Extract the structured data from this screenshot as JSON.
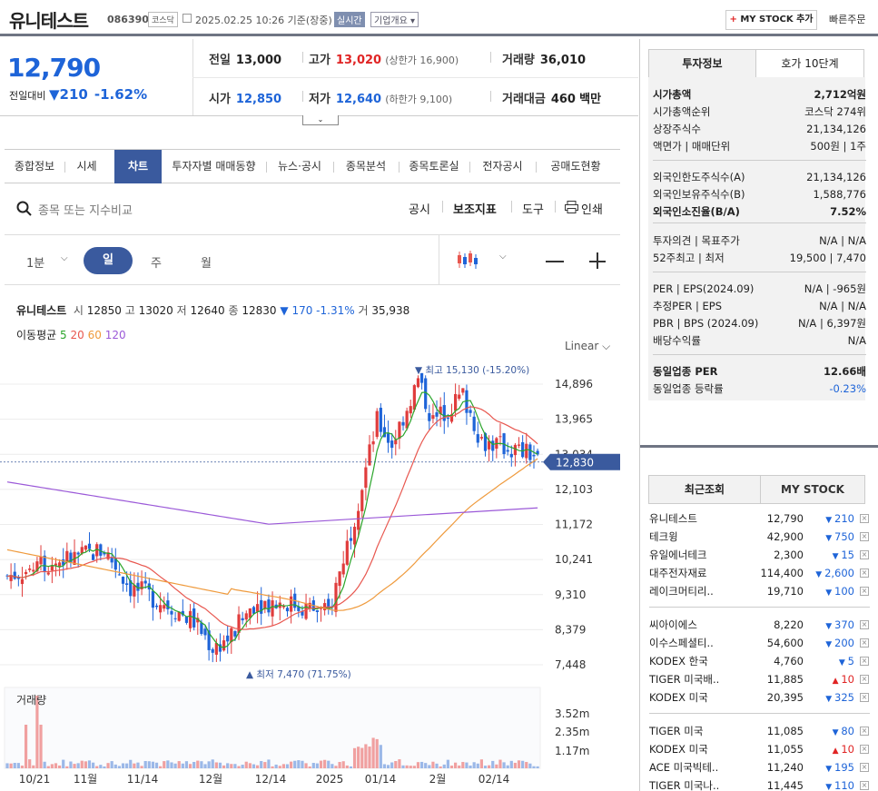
{
  "header": {
    "name": "유니테스트",
    "code": "086390",
    "market": "코스닥",
    "datetime": "2025.02.25 10:26  기준(장중)",
    "realtime": "실시간",
    "overview": "기업개요",
    "mystock_btn": "MY STOCK 추가",
    "fast_order": "빠른주문"
  },
  "price": {
    "current": "12,790",
    "change_label": "전일대비",
    "change": "210",
    "change_pct": "-1.62%",
    "prev_label": "전일",
    "prev": "13,000",
    "high_label": "고가",
    "high": "13,020",
    "upper_limit": "(상한가 16,900)",
    "volume_label": "거래량",
    "volume": "36,010",
    "open_label": "시가",
    "open": "12,850",
    "low_label": "저가",
    "low": "12,640",
    "lower_limit": "(하한가 9,100)",
    "amount_label": "거래대금",
    "amount": "460",
    "amount_unit": "백만"
  },
  "tabs": [
    "종합정보",
    "시세",
    "차트",
    "투자자별 매매동향",
    "뉴스·공시",
    "종목분석",
    "종목토론실",
    "전자공시",
    "공매도현황"
  ],
  "toolbar": {
    "search_placeholder": "종목 또는 지수비교",
    "disclosure": "공시",
    "indicator": "보조지표",
    "tools": "도구",
    "print": "인쇄"
  },
  "periods": [
    "1분",
    "일",
    "주",
    "월"
  ],
  "chart_info": {
    "name": "유니테스트",
    "open_l": "시",
    "open": "12850",
    "high_l": "고",
    "high": "13020",
    "low_l": "저",
    "low": "12640",
    "close_l": "종",
    "close": "12830",
    "change": "▼ 170 -1.31%",
    "vol_l": "거",
    "vol": "35,938",
    "ma_label": "이동평균",
    "ma": [
      "5",
      "20",
      "60",
      "120"
    ],
    "ma_colors": [
      "#2aa52a",
      "#e8574f",
      "#ef9a3c",
      "#9b59d8"
    ],
    "scale": "Linear",
    "high_note": "▼ 최고 15,130 (-15.20%)",
    "low_note": "▲ 최저 7,470 (71.75%)",
    "vol_title": "거래량",
    "current_tag": "12,830"
  },
  "chart_data": {
    "type": "candlestick",
    "y_ticks": [
      "14,896",
      "13,965",
      "13,034",
      "12,103",
      "11,172",
      "10,241",
      "9,310",
      "8,379",
      "7,448"
    ],
    "y_values": [
      14896,
      13965,
      13034,
      12103,
      11172,
      10241,
      9310,
      8379,
      7448
    ],
    "vol_ticks": [
      "3.52m",
      "2.35m",
      "1.17m"
    ],
    "x_ticks": [
      "10/21",
      "11월",
      "11/14",
      "12월",
      "12/14",
      "2025",
      "01/14",
      "2월",
      "02/14"
    ],
    "high": 15130,
    "low": 7470,
    "last": 12830
  },
  "info_tabs": [
    "투자정보",
    "호가 10단계"
  ],
  "info": [
    {
      "l": "시가총액",
      "v": "2,712억원",
      "bold": true
    },
    {
      "l": "시가총액순위",
      "v": "코스닥 274위"
    },
    {
      "l": "상장주식수",
      "v": "21,134,126"
    },
    {
      "l": "액면가 | 매매단위",
      "v": "500원 | 1주"
    },
    {
      "l": "외국인한도주식수(A)",
      "v": "21,134,126"
    },
    {
      "l": "외국인보유주식수(B)",
      "v": "1,588,776"
    },
    {
      "l": "외국인소진율(B/A)",
      "v": "7.52%",
      "bold": true
    },
    {
      "l": "투자의견 | 목표주가",
      "v": "N/A | N/A"
    },
    {
      "l": "52주최고 | 최저",
      "v": "19,500 | 7,470"
    },
    {
      "l": "PER | EPS(2024.09)",
      "v": "N/A | -965원"
    },
    {
      "l": "추정PER | EPS",
      "v": "N/A | N/A"
    },
    {
      "l": "PBR | BPS (2024.09)",
      "v": "N/A | 6,397원"
    },
    {
      "l": "배당수익률",
      "v": "N/A"
    },
    {
      "l": "동일업종 PER",
      "v": "12.66배",
      "bold": true
    },
    {
      "l": "동일업종 등락률",
      "v": "-0.23%",
      "blue": true
    }
  ],
  "recent_tabs": [
    "최근조회",
    "MY STOCK"
  ],
  "recent": [
    {
      "n": "유니테스트",
      "p": "12,790",
      "c": "210",
      "d": "down"
    },
    {
      "n": "테크윙",
      "p": "42,900",
      "c": "750",
      "d": "down"
    },
    {
      "n": "유일에너테크",
      "p": "2,300",
      "c": "15",
      "d": "down"
    },
    {
      "n": "대주전자재료",
      "p": "114,400",
      "c": "2,600",
      "d": "down"
    },
    {
      "n": "레이크머티리..",
      "p": "19,710",
      "c": "100",
      "d": "down"
    },
    {
      "n": "씨아이에스",
      "p": "8,220",
      "c": "370",
      "d": "down"
    },
    {
      "n": "이수스페셜티..",
      "p": "54,600",
      "c": "200",
      "d": "down"
    },
    {
      "n": "KODEX 한국",
      "p": "4,760",
      "c": "5",
      "d": "down"
    },
    {
      "n": "TIGER 미국배..",
      "p": "11,885",
      "c": "10",
      "d": "up"
    },
    {
      "n": "KODEX 미국",
      "p": "20,395",
      "c": "325",
      "d": "down"
    },
    {
      "n": "TIGER 미국",
      "p": "11,085",
      "c": "80",
      "d": "down"
    },
    {
      "n": "KODEX 미국",
      "p": "11,055",
      "c": "10",
      "d": "up"
    },
    {
      "n": "ACE 미국빅테..",
      "p": "11,240",
      "c": "195",
      "d": "down"
    },
    {
      "n": "TIGER 미국나..",
      "p": "11,445",
      "c": "110",
      "d": "down"
    }
  ]
}
